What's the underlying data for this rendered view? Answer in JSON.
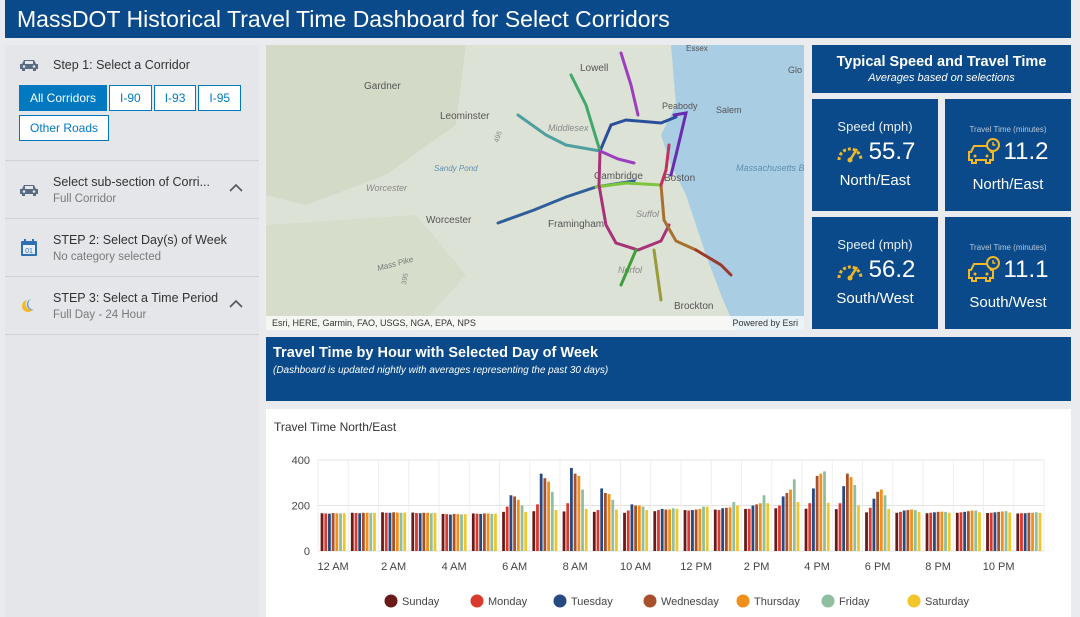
{
  "header": {
    "title": "MassDOT Historical Travel Time Dashboard for Select Corridors"
  },
  "sidebar": {
    "step1": {
      "label": "Step 1: Select a Corridor",
      "buttons": [
        "All Corridors",
        "I-90",
        "I-93",
        "I-95",
        "Other Roads"
      ],
      "selected": "All Corridors"
    },
    "subsection": {
      "label": "Select sub-section of Corri...",
      "value": "Full Corridor"
    },
    "step2": {
      "label": "STEP 2: Select Day(s) of Week",
      "value": "No category selected"
    },
    "step3": {
      "label": "STEP 3: Select a Time Period",
      "value": "Full Day - 24 Hour"
    }
  },
  "map": {
    "attribution": "Esri, HERE, Garmin, FAO, USGS, NGA, EPA, NPS",
    "powered_by": "Powered by Esri",
    "labels": {
      "essex": "Essex",
      "lowell": "Lowell",
      "glo": "Glo",
      "gardner": "Gardner",
      "peabody": "Peabody",
      "salem": "Salem",
      "leominster": "Leominster",
      "middlesex": "Middlesex",
      "sandy_pond": "Sandy Pond",
      "cambridge": "Cambridge",
      "boston": "Boston",
      "mass_bay": "Massachusetts Bay",
      "worcester_county": "Worcester",
      "worcester": "Worcester",
      "framingham": "Framingham",
      "suffolk": "Suffol",
      "mass_pike": "Mass Pike",
      "norfolk": "Norfol",
      "brockton": "Brockton",
      "route_495": "495",
      "route_395": "395"
    },
    "route_colors": {
      "i495_north": "#9b3fbf",
      "route2": "#4f9fa0",
      "i93_north": "#2a4f9a",
      "i95_north": "#6a2cae",
      "route3": "#3fa96a",
      "i90": "#2f5f9a",
      "route9": "#7cc53c",
      "i95_south": "#a83278",
      "i93_south": "#a87030",
      "route24": "#9b3a2a",
      "south_coast": "#3f9f3a",
      "route138": "#9a9a3a",
      "boston_core": "#c03060"
    }
  },
  "typical": {
    "title": "Typical Speed and Travel Time",
    "subtitle": "Averages based on selections"
  },
  "tiles": {
    "ne_speed": {
      "label": "Speed (mph)",
      "value": "55.7",
      "direction": "North/East",
      "icon": "speedometer-icon"
    },
    "ne_tt": {
      "label": "Travel Time (minutes)",
      "value": "11.2",
      "direction": "North/East",
      "icon": "car-clock-icon"
    },
    "sw_speed": {
      "label": "Speed (mph)",
      "value": "56.2",
      "direction": "South/West",
      "icon": "speedometer-icon"
    },
    "sw_tt": {
      "label": "Travel Time (minutes)",
      "value": "11.1",
      "direction": "South/West",
      "icon": "car-clock-icon"
    },
    "accent": "#f2b825"
  },
  "hourly": {
    "title": "Travel Time by Hour with Selected Day of Week",
    "subtitle": "(Dashboard is updated nightly with averages representing the past 30 days)"
  },
  "chart_data": {
    "type": "bar",
    "title": "Travel Time North/East",
    "xlabel": "",
    "ylabel": "",
    "ylim": [
      0,
      400
    ],
    "yticks": [
      0,
      200,
      400
    ],
    "categories": [
      "12 AM",
      "1 AM",
      "2 AM",
      "3 AM",
      "4 AM",
      "5 AM",
      "6 AM",
      "7 AM",
      "8 AM",
      "9 AM",
      "10 AM",
      "11 AM",
      "12 PM",
      "1 PM",
      "2 PM",
      "3 PM",
      "4 PM",
      "5 PM",
      "6 PM",
      "7 PM",
      "8 PM",
      "9 PM",
      "10 PM",
      "11 PM"
    ],
    "xticks": [
      "12 AM",
      "2 AM",
      "4 AM",
      "6 AM",
      "8 AM",
      "10 AM",
      "12 PM",
      "2 PM",
      "4 PM",
      "6 PM",
      "8 PM",
      "10 PM"
    ],
    "grid": true,
    "legend_position": "bottom",
    "series": [
      {
        "name": "Sunday",
        "color": "#6b1a1a",
        "values": [
          166,
          168,
          170,
          169,
          163,
          165,
          172,
          175,
          174,
          172,
          168,
          175,
          180,
          182,
          185,
          188,
          186,
          184,
          170,
          168,
          166,
          168,
          167,
          165
        ]
      },
      {
        "name": "Monday",
        "color": "#d93a2b",
        "values": [
          165,
          167,
          168,
          167,
          162,
          164,
          195,
          205,
          210,
          180,
          178,
          180,
          178,
          180,
          185,
          200,
          210,
          210,
          190,
          172,
          168,
          170,
          168,
          166
        ]
      },
      {
        "name": "Tuesday",
        "color": "#264a80",
        "values": [
          164,
          166,
          168,
          166,
          160,
          163,
          245,
          340,
          365,
          275,
          205,
          185,
          180,
          188,
          200,
          240,
          275,
          285,
          230,
          178,
          170,
          172,
          170,
          166
        ]
      },
      {
        "name": "Wednesday",
        "color": "#a8502a",
        "values": [
          167,
          168,
          170,
          168,
          163,
          165,
          240,
          320,
          340,
          255,
          200,
          182,
          182,
          190,
          205,
          255,
          330,
          340,
          260,
          180,
          172,
          175,
          172,
          168
        ]
      },
      {
        "name": "Thursday",
        "color": "#f0901a",
        "values": [
          166,
          168,
          169,
          168,
          162,
          165,
          225,
          305,
          330,
          250,
          200,
          183,
          185,
          192,
          210,
          270,
          340,
          325,
          270,
          182,
          173,
          178,
          174,
          168
        ]
      },
      {
        "name": "Friday",
        "color": "#8fbf9f",
        "values": [
          165,
          167,
          168,
          166,
          161,
          163,
          200,
          260,
          270,
          225,
          195,
          188,
          195,
          215,
          245,
          315,
          350,
          290,
          245,
          180,
          172,
          178,
          175,
          170
        ]
      },
      {
        "name": "Saturday",
        "color": "#f2c52b",
        "values": [
          166,
          167,
          169,
          167,
          162,
          164,
          172,
          180,
          185,
          182,
          180,
          185,
          195,
          200,
          210,
          215,
          212,
          200,
          185,
          172,
          168,
          170,
          169,
          167
        ]
      }
    ]
  }
}
